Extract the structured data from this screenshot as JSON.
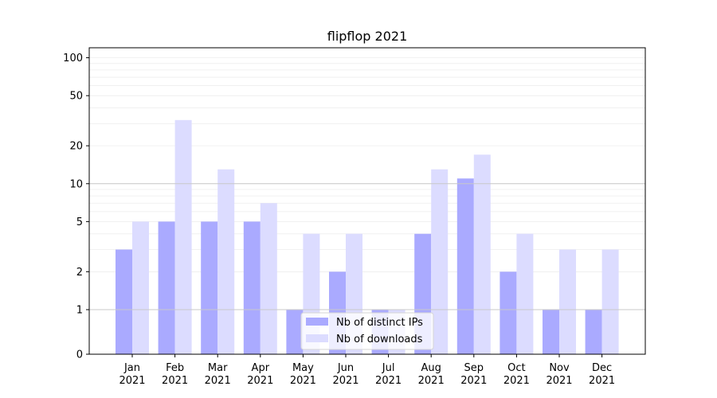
{
  "chart_data": {
    "type": "bar",
    "title": "flipflop 2021",
    "xlabel": "",
    "ylabel": "",
    "yscale": "symlog",
    "ylim": [
      0,
      120
    ],
    "yticks": [
      0,
      1,
      2,
      5,
      10,
      20,
      50,
      100
    ],
    "ytick_labels": [
      "0",
      "1",
      "2",
      "5",
      "10",
      "20",
      "50",
      "100"
    ],
    "grid": true,
    "categories": [
      [
        "Jan",
        "2021"
      ],
      [
        "Feb",
        "2021"
      ],
      [
        "Mar",
        "2021"
      ],
      [
        "Apr",
        "2021"
      ],
      [
        "May",
        "2021"
      ],
      [
        "Jun",
        "2021"
      ],
      [
        "Jul",
        "2021"
      ],
      [
        "Aug",
        "2021"
      ],
      [
        "Sep",
        "2021"
      ],
      [
        "Oct",
        "2021"
      ],
      [
        "Nov",
        "2021"
      ],
      [
        "Dec",
        "2021"
      ]
    ],
    "series": [
      {
        "name": "Nb of distinct IPs",
        "color": "#aaaaff",
        "values": [
          3,
          5,
          5,
          5,
          1,
          2,
          1,
          4,
          11,
          2,
          1,
          1
        ]
      },
      {
        "name": "Nb of downloads",
        "color": "#dcdcff",
        "values": [
          5,
          32,
          13,
          7,
          4,
          4,
          1,
          13,
          17,
          4,
          3,
          3
        ]
      }
    ],
    "legend_position": "bottom-center"
  }
}
